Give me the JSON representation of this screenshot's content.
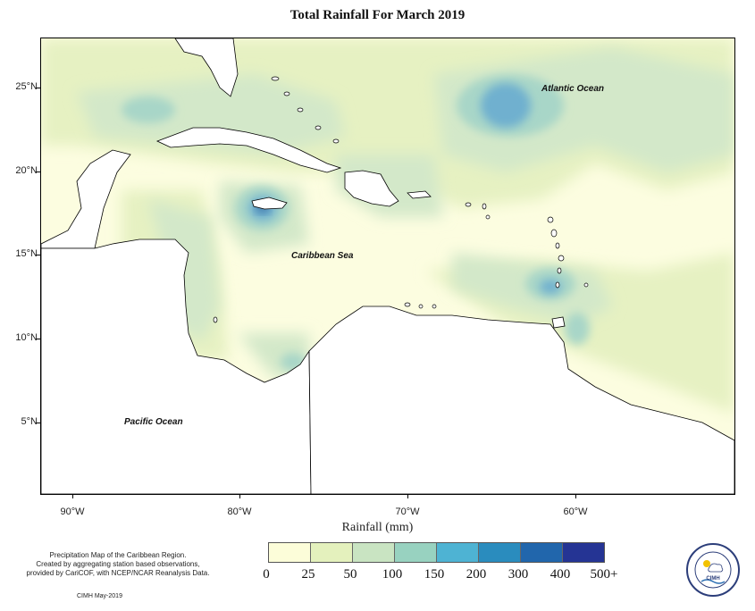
{
  "map": {
    "title": "Total Rainfall For March 2019",
    "xlabel": "Rainfall (mm)",
    "lat_ticks": [
      "25°N",
      "20°N",
      "15°N",
      "10°N",
      "5°N"
    ],
    "lon_ticks": [
      "90°W",
      "80°W",
      "70°W",
      "60°W"
    ],
    "labels": {
      "atlantic": "Atlantic Ocean",
      "caribbean": "Caribbean Sea",
      "pacific": "Pacific Ocean"
    },
    "extent": {
      "lon_min": -92.0,
      "lon_max": -50.4,
      "lat_min": 1.5,
      "lat_max": 28.5
    },
    "colors": {
      "land": "#ffffff",
      "background": "#fcfde0",
      "coast": "#000000"
    }
  },
  "legend": {
    "labels": [
      "0",
      "25",
      "50",
      "100",
      "150",
      "200",
      "300",
      "400",
      "500+"
    ],
    "colors": [
      "#fcfdd9",
      "#e4f1bd",
      "#c9e4c2",
      "#98d2c0",
      "#4eb3d3",
      "#2a8cbe",
      "#2166ac",
      "#253494",
      "#081d58"
    ]
  },
  "note": {
    "lines": [
      "Precipitation Map of the Caribbean Region.",
      "Created by aggregating station based observations,",
      "provided by CariCOF, with NCEP/NCAR Reanalysis Data."
    ],
    "credit": "CIMH May-2019",
    "logo_text": "CIMH"
  }
}
